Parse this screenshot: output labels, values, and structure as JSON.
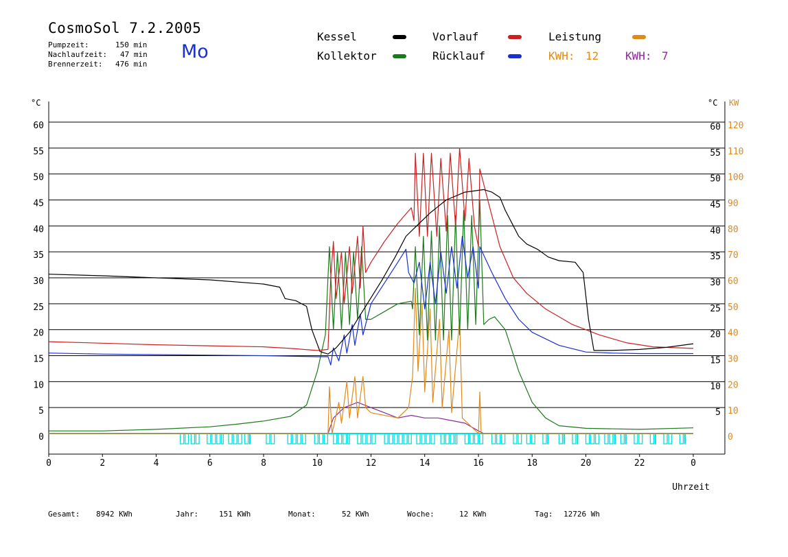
{
  "header": {
    "title": "CosmoSol 7.2.2005",
    "day": "Mo",
    "stats": [
      {
        "label": "Pumpzeit:",
        "value": "150 min"
      },
      {
        "label": "Nachlaufzeit:",
        "value": "47 min"
      },
      {
        "label": "Brennerzeit:",
        "value": "476 min"
      }
    ]
  },
  "legend": {
    "kessel": "Kessel",
    "kollektor": "Kollektor",
    "vorlauf": "Vorlauf",
    "ruecklauf": "Rücklauf",
    "leistung": "Leistung",
    "kwh1_label": "KWH:",
    "kwh1_value": "12",
    "kwh2_label": "KWH:",
    "kwh2_value": "7"
  },
  "colors": {
    "kessel": "#000000",
    "kollektor": "#1a7a1a",
    "vorlauf": "#cc2020",
    "ruecklauf": "#1a2fd0",
    "leistung": "#e08a1a",
    "kwh2": "#8a2a9a",
    "pump": "#00dede",
    "axis_right_kw": "#e08a1a"
  },
  "footer": {
    "gesamt_label": "Gesamt:",
    "gesamt_value": "8942 KWh",
    "jahr_label": "Jahr:",
    "jahr_value": "151 KWh",
    "monat_label": "Monat:",
    "monat_value": "52 KWh",
    "woche_label": "Woche:",
    "woche_value": "12 KWh",
    "tag_label": "Tag:",
    "tag_value": "12726 Wh"
  },
  "chart_data": {
    "type": "line",
    "xlabel": "Uhrzeit",
    "ylabel_left": "°C",
    "ylabel_right_temp": "°C",
    "ylabel_right_power": "KW",
    "xlim": [
      0,
      24
    ],
    "ylim": [
      0,
      60
    ],
    "ylim_right_power": [
      0,
      120
    ],
    "x_ticks": [
      "0",
      "2",
      "4",
      "6",
      "8",
      "10",
      "12",
      "14",
      "16",
      "18",
      "20",
      "22",
      "0"
    ],
    "y_ticks_left": [
      "0",
      "5",
      "10",
      "15",
      "20",
      "25",
      "30",
      "35",
      "40",
      "45",
      "50",
      "55",
      "60"
    ],
    "y_ticks_right_temp": [
      "5",
      "10",
      "15",
      "20",
      "25",
      "30",
      "35",
      "40",
      "45",
      "50",
      "55",
      "60"
    ],
    "y_ticks_right_power": [
      "0",
      "10",
      "20",
      "30",
      "40",
      "50",
      "60",
      "70",
      "80",
      "90",
      "100",
      "110",
      "120"
    ],
    "grid": "horizontal",
    "series": [
      {
        "name": "Kessel",
        "color": "#000000",
        "points": [
          [
            0,
            30.7
          ],
          [
            2,
            30.4
          ],
          [
            4,
            30.0
          ],
          [
            6,
            29.6
          ],
          [
            8,
            28.8
          ],
          [
            8.6,
            28.2
          ],
          [
            8.8,
            26
          ],
          [
            9.2,
            25.6
          ],
          [
            9.6,
            24.5
          ],
          [
            9.8,
            20
          ],
          [
            10.1,
            15.8
          ],
          [
            10.4,
            15.3
          ],
          [
            10.7,
            16.5
          ],
          [
            11.2,
            19.5
          ],
          [
            11.8,
            24.5
          ],
          [
            12.4,
            29.5
          ],
          [
            12.9,
            34
          ],
          [
            13.3,
            38
          ],
          [
            13.7,
            40
          ],
          [
            14.2,
            42.5
          ],
          [
            14.8,
            45
          ],
          [
            15.5,
            46.5
          ],
          [
            16.2,
            47
          ],
          [
            16.5,
            46.5
          ],
          [
            16.8,
            45.5
          ],
          [
            17.0,
            43
          ],
          [
            17.2,
            41
          ],
          [
            17.5,
            38
          ],
          [
            17.8,
            36.5
          ],
          [
            18.2,
            35.5
          ],
          [
            18.6,
            34
          ],
          [
            19.0,
            33.3
          ],
          [
            19.6,
            33
          ],
          [
            19.9,
            31
          ],
          [
            20.1,
            22
          ],
          [
            20.3,
            16
          ],
          [
            21,
            16
          ],
          [
            22,
            16.2
          ],
          [
            23,
            16.6
          ],
          [
            24,
            17.3
          ]
        ]
      },
      {
        "name": "Vorlauf",
        "color": "#cc2020",
        "points": [
          [
            0,
            17.7
          ],
          [
            2,
            17.4
          ],
          [
            4,
            17.1
          ],
          [
            6,
            16.9
          ],
          [
            8,
            16.7
          ],
          [
            9,
            16.4
          ],
          [
            10,
            16.0
          ],
          [
            10.4,
            16.2
          ],
          [
            10.5,
            30
          ],
          [
            10.6,
            37
          ],
          [
            10.7,
            26
          ],
          [
            10.9,
            35
          ],
          [
            11.0,
            25
          ],
          [
            11.2,
            36
          ],
          [
            11.3,
            27
          ],
          [
            11.5,
            38
          ],
          [
            11.6,
            28
          ],
          [
            11.7,
            40
          ],
          [
            11.8,
            31
          ],
          [
            12.0,
            33
          ],
          [
            12.5,
            37
          ],
          [
            13.0,
            40.5
          ],
          [
            13.5,
            43.5
          ],
          [
            13.6,
            41
          ],
          [
            13.65,
            54
          ],
          [
            13.8,
            38
          ],
          [
            13.95,
            54
          ],
          [
            14.1,
            38
          ],
          [
            14.25,
            54
          ],
          [
            14.45,
            38
          ],
          [
            14.6,
            53
          ],
          [
            14.8,
            39
          ],
          [
            14.95,
            54
          ],
          [
            15.15,
            40
          ],
          [
            15.3,
            55
          ],
          [
            15.5,
            41
          ],
          [
            15.65,
            53
          ],
          [
            15.85,
            40
          ],
          [
            16.0,
            36
          ],
          [
            16.05,
            51
          ],
          [
            16.4,
            44
          ],
          [
            16.8,
            36
          ],
          [
            17.3,
            30
          ],
          [
            17.8,
            27
          ],
          [
            18.5,
            24
          ],
          [
            19.5,
            21
          ],
          [
            20.5,
            19
          ],
          [
            21.5,
            17.5
          ],
          [
            22.5,
            16.7
          ],
          [
            24,
            16.4
          ]
        ]
      },
      {
        "name": "Rücklauf",
        "color": "#1a2fd0",
        "points": [
          [
            0,
            15.5
          ],
          [
            2,
            15.3
          ],
          [
            4,
            15.2
          ],
          [
            6,
            15.1
          ],
          [
            8,
            15.0
          ],
          [
            9,
            14.9
          ],
          [
            10,
            14.8
          ],
          [
            10.4,
            14.8
          ],
          [
            10.5,
            13.2
          ],
          [
            10.6,
            16.5
          ],
          [
            10.8,
            14
          ],
          [
            11.0,
            19
          ],
          [
            11.1,
            15.5
          ],
          [
            11.3,
            21
          ],
          [
            11.4,
            17
          ],
          [
            11.6,
            23
          ],
          [
            11.7,
            19
          ],
          [
            12.0,
            25
          ],
          [
            12.5,
            29
          ],
          [
            13.0,
            33
          ],
          [
            13.3,
            35.5
          ],
          [
            13.4,
            31
          ],
          [
            13.6,
            29
          ],
          [
            13.8,
            33
          ],
          [
            14.0,
            24
          ],
          [
            14.2,
            33
          ],
          [
            14.4,
            25
          ],
          [
            14.6,
            35
          ],
          [
            14.8,
            27
          ],
          [
            15.0,
            36
          ],
          [
            15.2,
            28
          ],
          [
            15.4,
            38
          ],
          [
            15.6,
            30
          ],
          [
            15.8,
            36
          ],
          [
            16.0,
            28
          ],
          [
            16.05,
            36
          ],
          [
            16.5,
            31
          ],
          [
            17.0,
            26
          ],
          [
            17.5,
            22
          ],
          [
            18.0,
            19.5
          ],
          [
            19.0,
            17
          ],
          [
            20.0,
            15.7
          ],
          [
            21,
            15.5
          ],
          [
            22,
            15.4
          ],
          [
            24,
            15.4
          ]
        ]
      },
      {
        "name": "Kollektor",
        "color": "#1a7a1a",
        "points": [
          [
            0,
            0.5
          ],
          [
            2,
            0.5
          ],
          [
            4,
            0.8
          ],
          [
            6,
            1.3
          ],
          [
            7,
            1.8
          ],
          [
            8,
            2.4
          ],
          [
            9,
            3.3
          ],
          [
            9.6,
            5.5
          ],
          [
            10.0,
            12
          ],
          [
            10.3,
            19
          ],
          [
            10.45,
            36
          ],
          [
            10.6,
            20
          ],
          [
            10.75,
            35
          ],
          [
            10.9,
            20
          ],
          [
            11.05,
            35
          ],
          [
            11.2,
            21
          ],
          [
            11.35,
            35
          ],
          [
            11.5,
            22
          ],
          [
            11.65,
            36
          ],
          [
            11.8,
            22
          ],
          [
            12.0,
            22
          ],
          [
            12.5,
            23.5
          ],
          [
            13.0,
            25
          ],
          [
            13.5,
            25.5
          ],
          [
            13.55,
            24
          ],
          [
            13.65,
            36
          ],
          [
            13.8,
            19
          ],
          [
            13.95,
            38
          ],
          [
            14.1,
            18
          ],
          [
            14.25,
            39
          ],
          [
            14.4,
            18
          ],
          [
            14.55,
            40
          ],
          [
            14.7,
            18
          ],
          [
            14.85,
            42
          ],
          [
            15.0,
            18
          ],
          [
            15.15,
            42
          ],
          [
            15.3,
            19
          ],
          [
            15.45,
            43
          ],
          [
            15.6,
            20
          ],
          [
            15.75,
            42
          ],
          [
            15.9,
            21
          ],
          [
            16.05,
            45
          ],
          [
            16.2,
            21
          ],
          [
            16.4,
            22
          ],
          [
            16.6,
            22.5
          ],
          [
            17.0,
            20
          ],
          [
            17.5,
            12
          ],
          [
            18.0,
            6
          ],
          [
            18.5,
            3
          ],
          [
            19,
            1.5
          ],
          [
            20,
            1
          ],
          [
            22,
            0.8
          ],
          [
            24,
            1.1
          ]
        ]
      },
      {
        "name": "Leistung",
        "color": "#e08a1a",
        "points": [
          [
            0,
            0
          ],
          [
            10.4,
            0
          ],
          [
            10.45,
            9
          ],
          [
            10.55,
            0
          ],
          [
            10.8,
            6
          ],
          [
            10.9,
            2
          ],
          [
            11.1,
            10
          ],
          [
            11.2,
            3
          ],
          [
            11.4,
            11
          ],
          [
            11.5,
            3
          ],
          [
            11.7,
            11
          ],
          [
            11.8,
            5
          ],
          [
            12.0,
            4
          ],
          [
            13.0,
            3
          ],
          [
            13.4,
            5
          ],
          [
            13.55,
            11
          ],
          [
            13.65,
            28
          ],
          [
            13.75,
            12
          ],
          [
            13.9,
            25
          ],
          [
            14.0,
            8
          ],
          [
            14.2,
            24
          ],
          [
            14.3,
            6
          ],
          [
            14.55,
            22
          ],
          [
            14.65,
            5
          ],
          [
            14.9,
            20
          ],
          [
            15.0,
            4
          ],
          [
            15.3,
            22
          ],
          [
            15.4,
            3
          ],
          [
            16.0,
            0
          ],
          [
            16.05,
            8
          ],
          [
            16.1,
            0
          ],
          [
            24,
            0
          ]
        ]
      },
      {
        "name": "KWH 2",
        "color": "#8a2a9a",
        "points": [
          [
            0,
            0
          ],
          [
            10.4,
            0
          ],
          [
            10.6,
            3
          ],
          [
            11,
            5
          ],
          [
            11.5,
            6
          ],
          [
            12,
            5
          ],
          [
            12.5,
            4
          ],
          [
            13,
            3
          ],
          [
            13.5,
            3.5
          ],
          [
            14,
            3
          ],
          [
            14.5,
            3
          ],
          [
            15,
            2.5
          ],
          [
            15.5,
            2
          ],
          [
            16,
            0.5
          ],
          [
            16.2,
            0
          ],
          [
            24,
            0
          ]
        ]
      }
    ],
    "pump_activity": [
      [
        4.9,
        5.2
      ],
      [
        5.3,
        5.6
      ],
      [
        5.9,
        6.5
      ],
      [
        6.7,
        7.2
      ],
      [
        7.3,
        7.5
      ],
      [
        8.1,
        8.4
      ],
      [
        8.9,
        9.6
      ],
      [
        9.9,
        10.4
      ],
      [
        10.6,
        11.2
      ],
      [
        11.5,
        12.2
      ],
      [
        12.5,
        13.5
      ],
      [
        13.7,
        14.4
      ],
      [
        14.6,
        15.2
      ],
      [
        15.5,
        16.2
      ],
      [
        16.5,
        17.0
      ],
      [
        17.3,
        17.6
      ],
      [
        17.8,
        18.1
      ],
      [
        18.4,
        18.6
      ],
      [
        19.0,
        19.2
      ],
      [
        19.5,
        19.7
      ],
      [
        20.0,
        20.5
      ],
      [
        20.7,
        21.1
      ],
      [
        21.3,
        21.5
      ],
      [
        21.8,
        22.1
      ],
      [
        22.4,
        22.6
      ],
      [
        22.9,
        23.2
      ],
      [
        23.5,
        23.7
      ]
    ]
  }
}
